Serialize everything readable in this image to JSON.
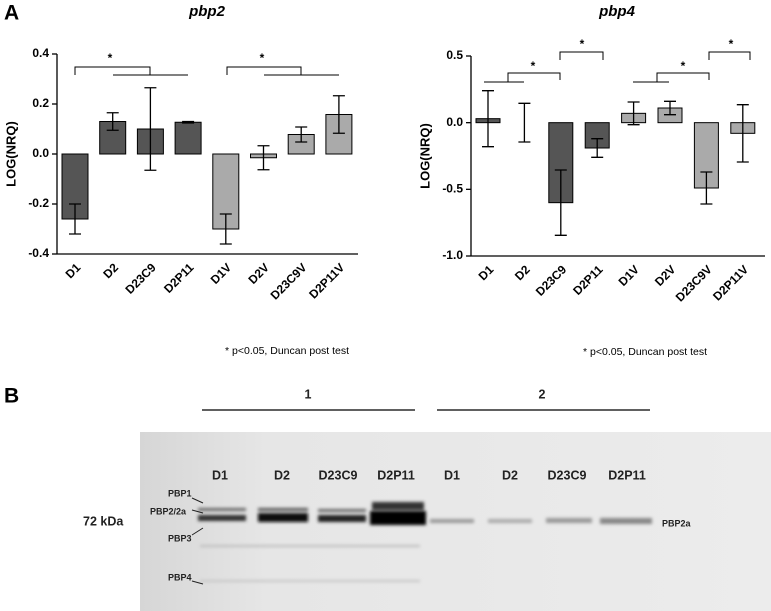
{
  "panel_labels": [
    "A",
    "B"
  ],
  "chart_data": [
    {
      "type": "bar",
      "title": "pbp2",
      "y_label": "LOG(NRQ)",
      "categories": [
        "D1",
        "D2",
        "D23C9",
        "D2P11",
        "D1V",
        "D2V",
        "D23C9V",
        "D2P11V"
      ],
      "values": [
        -0.26,
        0.13,
        0.1,
        0.127,
        -0.3,
        -0.015,
        0.078,
        0.158
      ],
      "errors": [
        0.06,
        0.035,
        0.165,
        0.003,
        0.06,
        0.048,
        0.03,
        0.075
      ],
      "colors": [
        "#555555",
        "#555555",
        "#555555",
        "#555555",
        "#aaaaaa",
        "#aaaaaa",
        "#aaaaaa",
        "#aaaaaa"
      ],
      "ylim": [
        -0.4,
        0.4
      ],
      "yticks": [
        -0.4,
        -0.2,
        {
          "value": 0,
          "label": "0.0"
        },
        0.2,
        0.4
      ],
      "annotations": [
        "*",
        "*"
      ],
      "footnote": "* p<0.05, Duncan post test"
    },
    {
      "type": "bar",
      "title": "pbp4",
      "y_label": "LOG(NRQ)",
      "categories": [
        "D1",
        "D2",
        "D23C9",
        "D2P11",
        "D1V",
        "D2V",
        "D23C9V",
        "D2P11V"
      ],
      "values": [
        0.03,
        0.0,
        -0.6,
        -0.19,
        0.07,
        0.11,
        -0.49,
        -0.08
      ],
      "errors": [
        0.21,
        0.145,
        0.245,
        0.07,
        0.085,
        0.05,
        0.12,
        0.215
      ],
      "colors": [
        "#555555",
        "#555555",
        "#555555",
        "#555555",
        "#aaaaaa",
        "#aaaaaa",
        "#aaaaaa",
        "#aaaaaa"
      ],
      "ylim": [
        -1,
        0.5
      ],
      "yticks": [
        {
          "value": -1,
          "label": "-1.0"
        },
        -0.5,
        {
          "value": 0,
          "label": "0.0"
        },
        0.5
      ],
      "annotations": [
        "*",
        "*",
        "*",
        "*"
      ],
      "footnote": "* p<0.05, Duncan post test"
    }
  ],
  "blot": {
    "groups": [
      "1",
      "2"
    ],
    "lanes": [
      "D1",
      "D2",
      "D23C9",
      "D2P11",
      "D1",
      "D2",
      "D23C9",
      "D2P11"
    ],
    "marker": "72 kDa",
    "left_labels": [
      "PBP1",
      "PBP2/2a",
      "PBP3",
      "PBP4"
    ],
    "right_label": "PBP2a"
  }
}
